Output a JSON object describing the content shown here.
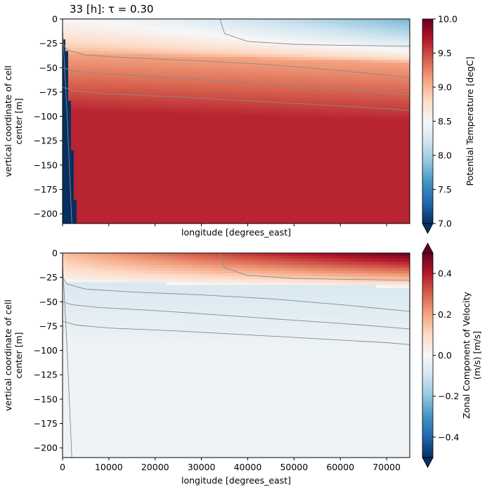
{
  "title": "33 [h]: τ = 0.30",
  "chart_data": [
    {
      "type": "heatmap",
      "variable": "Potential Temperature [degC]",
      "xlabel": "longitude [degrees_east]",
      "ylabel": "vertical coordinate of cell center [m]",
      "ylabel_lines": [
        "vertical coordinate of cell",
        "center [m]"
      ],
      "xlim": [
        0,
        75000
      ],
      "ylim": [
        -210,
        0
      ],
      "x_ticks": [
        0,
        10000,
        20000,
        30000,
        40000,
        50000,
        60000,
        70000
      ],
      "x_tick_labels_shown": false,
      "y_ticks": [
        0,
        -25,
        -50,
        -75,
        -100,
        -125,
        -150,
        -175,
        -200
      ],
      "y_tick_labels": [
        "0",
        "−25",
        "−50",
        "−75",
        "−100",
        "−125",
        "−150",
        "−175",
        "−200"
      ],
      "colorbar": {
        "label": "Potential Temperature [degC]",
        "vmin": 7.0,
        "vmax": 10.0,
        "extend": "min",
        "cmap": "RdBu_r",
        "ticks": [
          7.0,
          7.5,
          8.0,
          8.5,
          9.0,
          9.5,
          10.0
        ],
        "tick_labels": [
          "7.0",
          "7.5",
          "8.0",
          "8.5",
          "9.0",
          "9.5",
          "10.0"
        ]
      },
      "field_profile": {
        "surface_west": 8.5,
        "surface_east": 7.8,
        "mixed_layer_bottom_m": -35,
        "below_mixed_layer_upper": 9.1,
        "deep_value": 9.65,
        "western_boundary_cold": 7.0
      },
      "contours": [
        {
          "x": [
            0,
            1000,
            5000,
            15000,
            30000,
            45000,
            60000,
            75000
          ],
          "y": [
            -25,
            -32,
            -37,
            -40,
            -43,
            -47,
            -53,
            -60
          ]
        },
        {
          "x": [
            0,
            2000,
            8000,
            20000,
            35000,
            50000,
            65000,
            75000
          ],
          "y": [
            -50,
            -53,
            -56,
            -59,
            -64,
            -69,
            -74,
            -78
          ]
        },
        {
          "x": [
            0,
            3000,
            10000,
            25000,
            40000,
            55000,
            70000,
            75000
          ],
          "y": [
            -70,
            -74,
            -77,
            -80,
            -84,
            -88,
            -92,
            -94
          ]
        },
        {
          "x": [
            34000,
            35000,
            40000,
            50000,
            60000,
            75000
          ],
          "y": [
            0,
            -15,
            -23,
            -26,
            -27,
            -28
          ]
        },
        {
          "x": [
            0,
            1000,
            2000
          ],
          "y": [
            -10,
            -100,
            -210
          ]
        }
      ]
    },
    {
      "type": "heatmap",
      "variable": "Zonal Component of Velocity (m/s) [m/s]",
      "xlabel": "longitude [degrees_east]",
      "ylabel": "vertical coordinate of cell center [m]",
      "ylabel_lines": [
        "vertical coordinate of cell",
        "center [m]"
      ],
      "xlim": [
        0,
        75000
      ],
      "ylim": [
        -210,
        0
      ],
      "x_ticks": [
        0,
        10000,
        20000,
        30000,
        40000,
        50000,
        60000,
        70000
      ],
      "x_tick_labels": [
        "0",
        "10000",
        "20000",
        "30000",
        "40000",
        "50000",
        "60000",
        "70000"
      ],
      "y_ticks": [
        0,
        -25,
        -50,
        -75,
        -100,
        -125,
        -150,
        -175,
        -200
      ],
      "y_tick_labels": [
        "0",
        "−25",
        "−50",
        "−75",
        "−100",
        "−125",
        "−150",
        "−175",
        "−200"
      ],
      "colorbar": {
        "label_lines": [
          "Zonal Component of Velocity",
          "(m/s) [m/s]"
        ],
        "vmin": -0.5,
        "vmax": 0.5,
        "extend": "both",
        "cmap": "RdBu_r",
        "ticks": [
          -0.4,
          -0.2,
          0.0,
          0.2,
          0.4
        ],
        "tick_labels": [
          "−0.4",
          "−0.2",
          "0.0",
          "0.2",
          "0.4"
        ]
      },
      "field_profile": {
        "surface_west": 0.15,
        "surface_east": 0.5,
        "mixed_layer_bottom_m": -30,
        "subsurface_min": -0.08,
        "deep_value": -0.02
      },
      "contours": [
        {
          "x": [
            0,
            1000,
            5000,
            15000,
            30000,
            45000,
            60000,
            75000
          ],
          "y": [
            -25,
            -32,
            -37,
            -40,
            -43,
            -47,
            -53,
            -60
          ]
        },
        {
          "x": [
            0,
            2000,
            8000,
            20000,
            35000,
            50000,
            65000,
            75000
          ],
          "y": [
            -50,
            -53,
            -56,
            -59,
            -64,
            -69,
            -74,
            -78
          ]
        },
        {
          "x": [
            0,
            3000,
            10000,
            25000,
            40000,
            55000,
            70000,
            75000
          ],
          "y": [
            -70,
            -74,
            -77,
            -80,
            -84,
            -88,
            -92,
            -94
          ]
        },
        {
          "x": [
            34000,
            35000,
            40000,
            50000,
            60000,
            75000
          ],
          "y": [
            0,
            -15,
            -23,
            -26,
            -27,
            -28
          ]
        },
        {
          "x": [
            0,
            1000,
            2000
          ],
          "y": [
            -10,
            -100,
            -210
          ]
        }
      ]
    }
  ]
}
